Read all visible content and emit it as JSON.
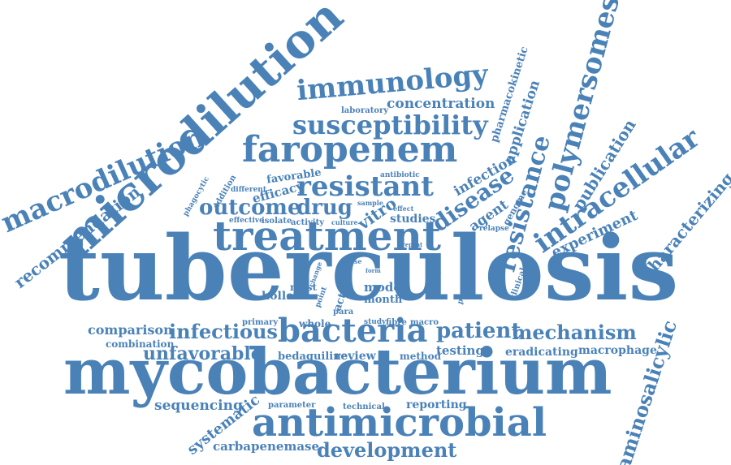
{
  "color": "#4a82b8",
  "words": [
    {
      "text": "tuberculosis"
    },
    {
      "text": "mycobacterium"
    },
    {
      "text": "microdilution"
    },
    {
      "text": "treatment"
    },
    {
      "text": "antimicrobial"
    },
    {
      "text": "faropenem"
    },
    {
      "text": "macrodilution"
    },
    {
      "text": "susceptibility"
    },
    {
      "text": "immunology"
    },
    {
      "text": "bacteria"
    },
    {
      "text": "resistant"
    },
    {
      "text": "polymersomes"
    },
    {
      "text": "intracellular"
    },
    {
      "text": "resistance"
    },
    {
      "text": "infectious"
    },
    {
      "text": "mechanism"
    },
    {
      "text": "patient"
    },
    {
      "text": "development"
    },
    {
      "text": "aminosalicylic"
    },
    {
      "text": "disease"
    },
    {
      "text": "outcome"
    },
    {
      "text": "drug"
    },
    {
      "text": "recommendation"
    },
    {
      "text": "unfavorable"
    },
    {
      "text": "characterizing"
    },
    {
      "text": "concentration"
    },
    {
      "text": "publication"
    },
    {
      "text": "experiment"
    },
    {
      "text": "comparison"
    },
    {
      "text": "systematic"
    },
    {
      "text": "sequencing"
    },
    {
      "text": "carbapenemase"
    },
    {
      "text": "eradicating"
    },
    {
      "text": "macrophage"
    },
    {
      "text": "testing"
    },
    {
      "text": "review"
    },
    {
      "text": "bedaquiline"
    },
    {
      "text": "reporting"
    },
    {
      "text": "method"
    },
    {
      "text": "combination"
    },
    {
      "text": "infection"
    },
    {
      "text": "application"
    },
    {
      "text": "pharmacokinetic"
    },
    {
      "text": "agent"
    },
    {
      "text": "vitro"
    },
    {
      "text": "studies"
    },
    {
      "text": "efficacy"
    },
    {
      "text": "favorable"
    },
    {
      "text": "hollow"
    },
    {
      "text": "model"
    },
    {
      "text": "month"
    },
    {
      "text": "whole"
    },
    {
      "text": "action"
    },
    {
      "text": "most"
    },
    {
      "text": "primary"
    },
    {
      "text": "parameter"
    },
    {
      "text": "technical"
    },
    {
      "text": "genome"
    },
    {
      "text": "laboratory"
    },
    {
      "text": "addition"
    },
    {
      "text": "phagocytic"
    },
    {
      "text": "different"
    },
    {
      "text": "effective"
    },
    {
      "text": "isolate"
    },
    {
      "text": "activity"
    },
    {
      "text": "antibiotic"
    },
    {
      "text": "sample"
    },
    {
      "text": "effect"
    },
    {
      "text": "culture"
    },
    {
      "text": "relapse"
    },
    {
      "text": "clinical"
    },
    {
      "text": "profile"
    },
    {
      "text": "safety"
    },
    {
      "text": "point"
    },
    {
      "text": "change"
    },
    {
      "text": "para"
    },
    {
      "text": "study"
    },
    {
      "text": "fibre"
    },
    {
      "text": "macro"
    },
    {
      "text": "cause"
    },
    {
      "text": "repeat"
    },
    {
      "text": "form"
    }
  ]
}
